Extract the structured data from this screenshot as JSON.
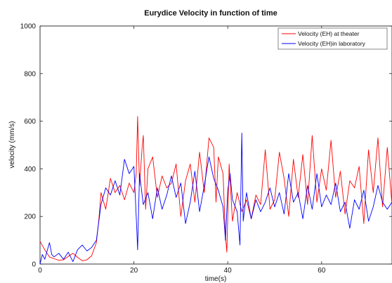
{
  "chart_data": {
    "type": "line",
    "title": "Eurydice Velocity  in function of time",
    "xlabel": "time(s)",
    "ylabel": "velocity (mm/s)",
    "xlim": [
      0,
      75
    ],
    "ylim": [
      0,
      1000
    ],
    "x_ticks": [
      0,
      20,
      40,
      60
    ],
    "y_ticks": [
      0,
      200,
      400,
      600,
      800,
      1000
    ],
    "grid": false,
    "legend_position": "top-right",
    "series": [
      {
        "name": "Velocity (EH) at theater",
        "color": "#ff0000",
        "points": [
          [
            0,
            95
          ],
          [
            1,
            60
          ],
          [
            2,
            30
          ],
          [
            3,
            22
          ],
          [
            4,
            16
          ],
          [
            5,
            18
          ],
          [
            6,
            32
          ],
          [
            7,
            45
          ],
          [
            8,
            28
          ],
          [
            9,
            14
          ],
          [
            10,
            18
          ],
          [
            11,
            35
          ],
          [
            12,
            90
          ],
          [
            12.5,
            180
          ],
          [
            13,
            300
          ],
          [
            14,
            230
          ],
          [
            15,
            360
          ],
          [
            16,
            300
          ],
          [
            17,
            330
          ],
          [
            18,
            270
          ],
          [
            19,
            340
          ],
          [
            20,
            300
          ],
          [
            20.5,
            380
          ],
          [
            20.8,
            620
          ],
          [
            21.2,
            330
          ],
          [
            21.8,
            500
          ],
          [
            22,
            540
          ],
          [
            22.5,
            230
          ],
          [
            23,
            400
          ],
          [
            24,
            450
          ],
          [
            25,
            280
          ],
          [
            26,
            370
          ],
          [
            27,
            320
          ],
          [
            28,
            340
          ],
          [
            29,
            420
          ],
          [
            30,
            200
          ],
          [
            31,
            350
          ],
          [
            32,
            420
          ],
          [
            33,
            260
          ],
          [
            34,
            470
          ],
          [
            35,
            300
          ],
          [
            36,
            530
          ],
          [
            37,
            490
          ],
          [
            37.5,
            260
          ],
          [
            38,
            450
          ],
          [
            39,
            380
          ],
          [
            39.5,
            120
          ],
          [
            39.8,
            50
          ],
          [
            40.3,
            420
          ],
          [
            41,
            180
          ],
          [
            42,
            300
          ],
          [
            43,
            220
          ],
          [
            44,
            270
          ],
          [
            45,
            190
          ],
          [
            46,
            290
          ],
          [
            47,
            250
          ],
          [
            48,
            480
          ],
          [
            49,
            230
          ],
          [
            50,
            270
          ],
          [
            51,
            470
          ],
          [
            52,
            360
          ],
          [
            53,
            200
          ],
          [
            54,
            440
          ],
          [
            55,
            280
          ],
          [
            56,
            460
          ],
          [
            57,
            250
          ],
          [
            58,
            540
          ],
          [
            59,
            260
          ],
          [
            60,
            400
          ],
          [
            61,
            310
          ],
          [
            62,
            520
          ],
          [
            63,
            280
          ],
          [
            64,
            390
          ],
          [
            65,
            210
          ],
          [
            66,
            350
          ],
          [
            67,
            320
          ],
          [
            68,
            410
          ],
          [
            69,
            170
          ],
          [
            70,
            480
          ],
          [
            71,
            300
          ],
          [
            72,
            530
          ],
          [
            73,
            240
          ],
          [
            74,
            490
          ],
          [
            75,
            250
          ]
        ]
      },
      {
        "name": "Velocity (EH)in laboratory",
        "color": "#0000ff",
        "points": [
          [
            0,
            0
          ],
          [
            0.5,
            40
          ],
          [
            1,
            20
          ],
          [
            2,
            90
          ],
          [
            2.5,
            40
          ],
          [
            3,
            30
          ],
          [
            4,
            45
          ],
          [
            5,
            20
          ],
          [
            6,
            50
          ],
          [
            7,
            10
          ],
          [
            8,
            60
          ],
          [
            9,
            80
          ],
          [
            10,
            55
          ],
          [
            11,
            70
          ],
          [
            12,
            100
          ],
          [
            13,
            250
          ],
          [
            14,
            320
          ],
          [
            15,
            290
          ],
          [
            16,
            350
          ],
          [
            17,
            290
          ],
          [
            18,
            440
          ],
          [
            19,
            380
          ],
          [
            20,
            410
          ],
          [
            20.5,
            200
          ],
          [
            20.8,
            60
          ],
          [
            21.2,
            380
          ],
          [
            22,
            250
          ],
          [
            23,
            300
          ],
          [
            24,
            190
          ],
          [
            25,
            320
          ],
          [
            26,
            230
          ],
          [
            27,
            290
          ],
          [
            28,
            370
          ],
          [
            29,
            280
          ],
          [
            30,
            340
          ],
          [
            31,
            170
          ],
          [
            32,
            260
          ],
          [
            33,
            390
          ],
          [
            34,
            220
          ],
          [
            35,
            330
          ],
          [
            36,
            450
          ],
          [
            37,
            360
          ],
          [
            38,
            310
          ],
          [
            39,
            240
          ],
          [
            39.5,
            100
          ],
          [
            40,
            310
          ],
          [
            40.5,
            380
          ],
          [
            41,
            270
          ],
          [
            42,
            220
          ],
          [
            42.6,
            80
          ],
          [
            43,
            550
          ],
          [
            43.3,
            180
          ],
          [
            44,
            300
          ],
          [
            45,
            190
          ],
          [
            46,
            270
          ],
          [
            47,
            220
          ],
          [
            48,
            260
          ],
          [
            49,
            320
          ],
          [
            50,
            240
          ],
          [
            51,
            300
          ],
          [
            52,
            210
          ],
          [
            53,
            380
          ],
          [
            54,
            260
          ],
          [
            55,
            300
          ],
          [
            56,
            190
          ],
          [
            57,
            330
          ],
          [
            58,
            230
          ],
          [
            59,
            380
          ],
          [
            60,
            240
          ],
          [
            61,
            290
          ],
          [
            62,
            250
          ],
          [
            63,
            340
          ],
          [
            64,
            220
          ],
          [
            65,
            260
          ],
          [
            66,
            150
          ],
          [
            67,
            270
          ],
          [
            68,
            230
          ],
          [
            69,
            310
          ],
          [
            70,
            180
          ],
          [
            71,
            240
          ],
          [
            72,
            330
          ],
          [
            73,
            260
          ],
          [
            74,
            230
          ],
          [
            75,
            260
          ]
        ]
      }
    ]
  }
}
